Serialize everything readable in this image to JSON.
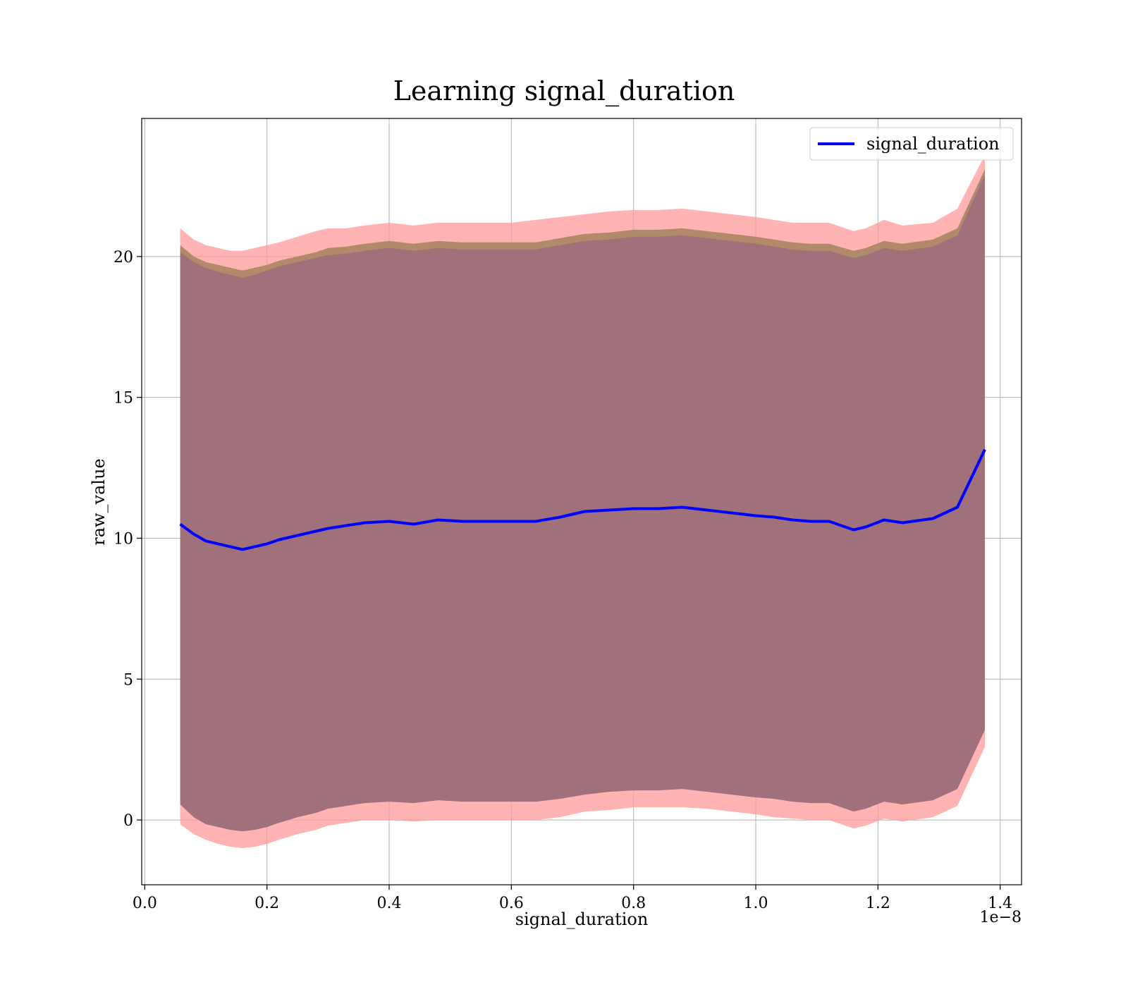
{
  "chart_data": {
    "type": "line",
    "title": "Learning signal_duration",
    "xlabel": "signal_duration",
    "ylabel": "raw_value",
    "x_offset_label": "1e−8",
    "xlim": [
      -0.005,
      1.435
    ],
    "ylim": [
      -2.3,
      24.9
    ],
    "x_ticks": [
      0.0,
      0.2,
      0.4,
      0.6,
      0.8,
      1.0,
      1.2,
      1.4
    ],
    "x_tick_labels": [
      "0.0",
      "0.2",
      "0.4",
      "0.6",
      "0.8",
      "1.0",
      "1.2",
      "1.4"
    ],
    "y_ticks": [
      0,
      5,
      10,
      15,
      20
    ],
    "y_tick_labels": [
      "0",
      "5",
      "10",
      "15",
      "20"
    ],
    "grid": true,
    "legend": {
      "position": "top-right",
      "entries": [
        "signal_duration"
      ]
    },
    "colors": {
      "line": "#0000ff",
      "outer_band": "#ff9999",
      "middle_band": "#b08a6a",
      "inner_band": "#a0717a"
    },
    "x": [
      0.058,
      0.08,
      0.1,
      0.12,
      0.14,
      0.16,
      0.18,
      0.2,
      0.22,
      0.25,
      0.28,
      0.3,
      0.33,
      0.36,
      0.4,
      0.44,
      0.48,
      0.52,
      0.56,
      0.6,
      0.64,
      0.68,
      0.72,
      0.76,
      0.8,
      0.84,
      0.88,
      0.92,
      0.96,
      1.0,
      1.03,
      1.06,
      1.09,
      1.12,
      1.16,
      1.18,
      1.21,
      1.24,
      1.29,
      1.33,
      1.375
    ],
    "series": [
      {
        "name": "signal_duration",
        "values": [
          10.5,
          10.15,
          9.9,
          9.8,
          9.7,
          9.6,
          9.7,
          9.8,
          9.95,
          10.1,
          10.25,
          10.35,
          10.45,
          10.55,
          10.6,
          10.5,
          10.65,
          10.6,
          10.6,
          10.6,
          10.6,
          10.75,
          10.95,
          11.0,
          11.05,
          11.05,
          11.1,
          11.0,
          10.9,
          10.8,
          10.75,
          10.65,
          10.6,
          10.6,
          10.3,
          10.4,
          10.65,
          10.55,
          10.7,
          11.1,
          13.15
        ]
      }
    ],
    "bands": [
      {
        "role": "outer",
        "upper": [
          21.0,
          20.6,
          20.4,
          20.3,
          20.2,
          20.2,
          20.3,
          20.4,
          20.5,
          20.7,
          20.9,
          21.0,
          21.0,
          21.1,
          21.2,
          21.1,
          21.2,
          21.2,
          21.2,
          21.2,
          21.3,
          21.4,
          21.5,
          21.6,
          21.65,
          21.65,
          21.7,
          21.6,
          21.5,
          21.4,
          21.3,
          21.2,
          21.2,
          21.2,
          20.9,
          21.0,
          21.3,
          21.1,
          21.2,
          21.7,
          23.6
        ],
        "lower": [
          -0.15,
          -0.5,
          -0.7,
          -0.85,
          -0.95,
          -1.0,
          -0.95,
          -0.85,
          -0.7,
          -0.5,
          -0.35,
          -0.2,
          -0.1,
          0.0,
          0.0,
          -0.05,
          0.0,
          0.0,
          0.0,
          0.0,
          0.0,
          0.1,
          0.3,
          0.35,
          0.45,
          0.45,
          0.45,
          0.4,
          0.3,
          0.2,
          0.1,
          0.05,
          0.0,
          0.0,
          -0.3,
          -0.2,
          0.05,
          -0.05,
          0.1,
          0.5,
          2.6
        ]
      },
      {
        "role": "middle",
        "upper": [
          20.4,
          20.0,
          19.8,
          19.7,
          19.6,
          19.5,
          19.6,
          19.7,
          19.85,
          20.0,
          20.15,
          20.3,
          20.35,
          20.45,
          20.55,
          20.45,
          20.55,
          20.5,
          20.5,
          20.5,
          20.5,
          20.65,
          20.8,
          20.85,
          20.95,
          20.95,
          21.0,
          20.9,
          20.8,
          20.7,
          20.6,
          20.5,
          20.45,
          20.45,
          20.2,
          20.3,
          20.55,
          20.45,
          20.6,
          21.0,
          23.1
        ],
        "lower": [
          0.8,
          0.35,
          0.1,
          0.0,
          -0.15,
          -0.2,
          -0.15,
          -0.05,
          0.1,
          0.3,
          0.45,
          0.6,
          0.7,
          0.8,
          0.85,
          0.8,
          0.9,
          0.85,
          0.85,
          0.85,
          0.85,
          0.95,
          1.1,
          1.2,
          1.25,
          1.25,
          1.3,
          1.2,
          1.1,
          1.0,
          0.95,
          0.85,
          0.8,
          0.8,
          0.5,
          0.6,
          0.85,
          0.75,
          0.9,
          1.3,
          3.4
        ]
      },
      {
        "role": "inner",
        "upper": [
          20.15,
          19.8,
          19.6,
          19.45,
          19.35,
          19.25,
          19.35,
          19.5,
          19.65,
          19.8,
          19.95,
          20.05,
          20.1,
          20.2,
          20.3,
          20.2,
          20.3,
          20.25,
          20.25,
          20.25,
          20.25,
          20.4,
          20.55,
          20.6,
          20.7,
          20.7,
          20.75,
          20.65,
          20.55,
          20.45,
          20.35,
          20.25,
          20.2,
          20.2,
          19.95,
          20.05,
          20.3,
          20.2,
          20.35,
          20.75,
          22.9
        ],
        "lower": [
          0.55,
          0.1,
          -0.15,
          -0.25,
          -0.35,
          -0.4,
          -0.35,
          -0.25,
          -0.1,
          0.1,
          0.25,
          0.4,
          0.5,
          0.6,
          0.65,
          0.6,
          0.7,
          0.65,
          0.65,
          0.65,
          0.65,
          0.75,
          0.9,
          1.0,
          1.05,
          1.05,
          1.1,
          1.0,
          0.9,
          0.8,
          0.75,
          0.65,
          0.6,
          0.6,
          0.3,
          0.4,
          0.65,
          0.55,
          0.7,
          1.1,
          3.2
        ]
      }
    ]
  }
}
